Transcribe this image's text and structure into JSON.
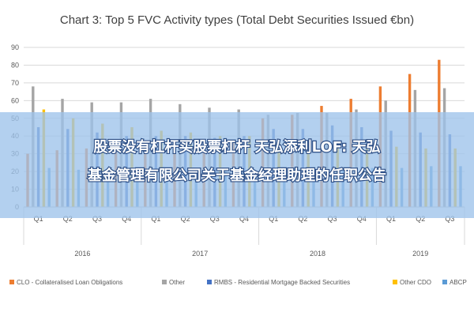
{
  "chart_data": {
    "type": "bar",
    "title": "Chart 3: Top 5 FVC Activity types (Total Debt Securities Issued €bn)",
    "xlabel": "",
    "ylabel": "",
    "ylim": [
      0,
      90
    ],
    "yticks": [
      "0",
      "10",
      "20",
      "30",
      "40",
      "50",
      "60",
      "70",
      "80",
      "90"
    ],
    "categories": [
      "Q1",
      "Q2",
      "Q3",
      "Q4",
      "Q1",
      "Q2",
      "Q3",
      "Q4",
      "Q1",
      "Q2",
      "Q3",
      "Q4",
      "Q1",
      "Q2",
      "Q3"
    ],
    "year_groups": [
      {
        "label": "2016",
        "quarters": 4
      },
      {
        "label": "2017",
        "quarters": 4
      },
      {
        "label": "2018",
        "quarters": 4
      },
      {
        "label": "2019",
        "quarters": 3
      }
    ],
    "grid": true,
    "legend_position": "bottom",
    "series": [
      {
        "name": "CLO - Collateralised Loan Obligations",
        "color": "#ed7d31",
        "values": [
          30,
          32,
          33,
          33,
          33,
          35,
          35,
          37,
          50,
          52,
          57,
          61,
          68,
          75,
          83
        ]
      },
      {
        "name": "Other",
        "color": "#a5a5a5",
        "values": [
          68,
          61,
          59,
          59,
          61,
          58,
          56,
          55,
          52,
          53,
          53,
          55,
          60,
          66,
          67
        ]
      },
      {
        "name": "RMBS - Residential Mortgage Backed Securities",
        "color": "#4472c4",
        "values": [
          45,
          44,
          42,
          40,
          40,
          40,
          39,
          40,
          44,
          44,
          46,
          45,
          43,
          42,
          41
        ]
      },
      {
        "name": "Other CDO",
        "color": "#ffc000",
        "values": [
          55,
          50,
          47,
          45,
          43,
          42,
          40,
          40,
          38,
          37,
          36,
          35,
          34,
          33,
          33
        ]
      },
      {
        "name": "ABCP",
        "color": "#5b9bd5",
        "values": [
          22,
          21,
          21,
          20,
          20,
          20,
          20,
          20,
          21,
          21,
          22,
          22,
          22,
          23,
          23
        ]
      }
    ]
  },
  "banner": {
    "line1": "股票没有杠杆买股票杠杆 天弘添利LOF: 天弘",
    "line2": "基金管理有限公司关于基金经理助理的任职公告"
  }
}
